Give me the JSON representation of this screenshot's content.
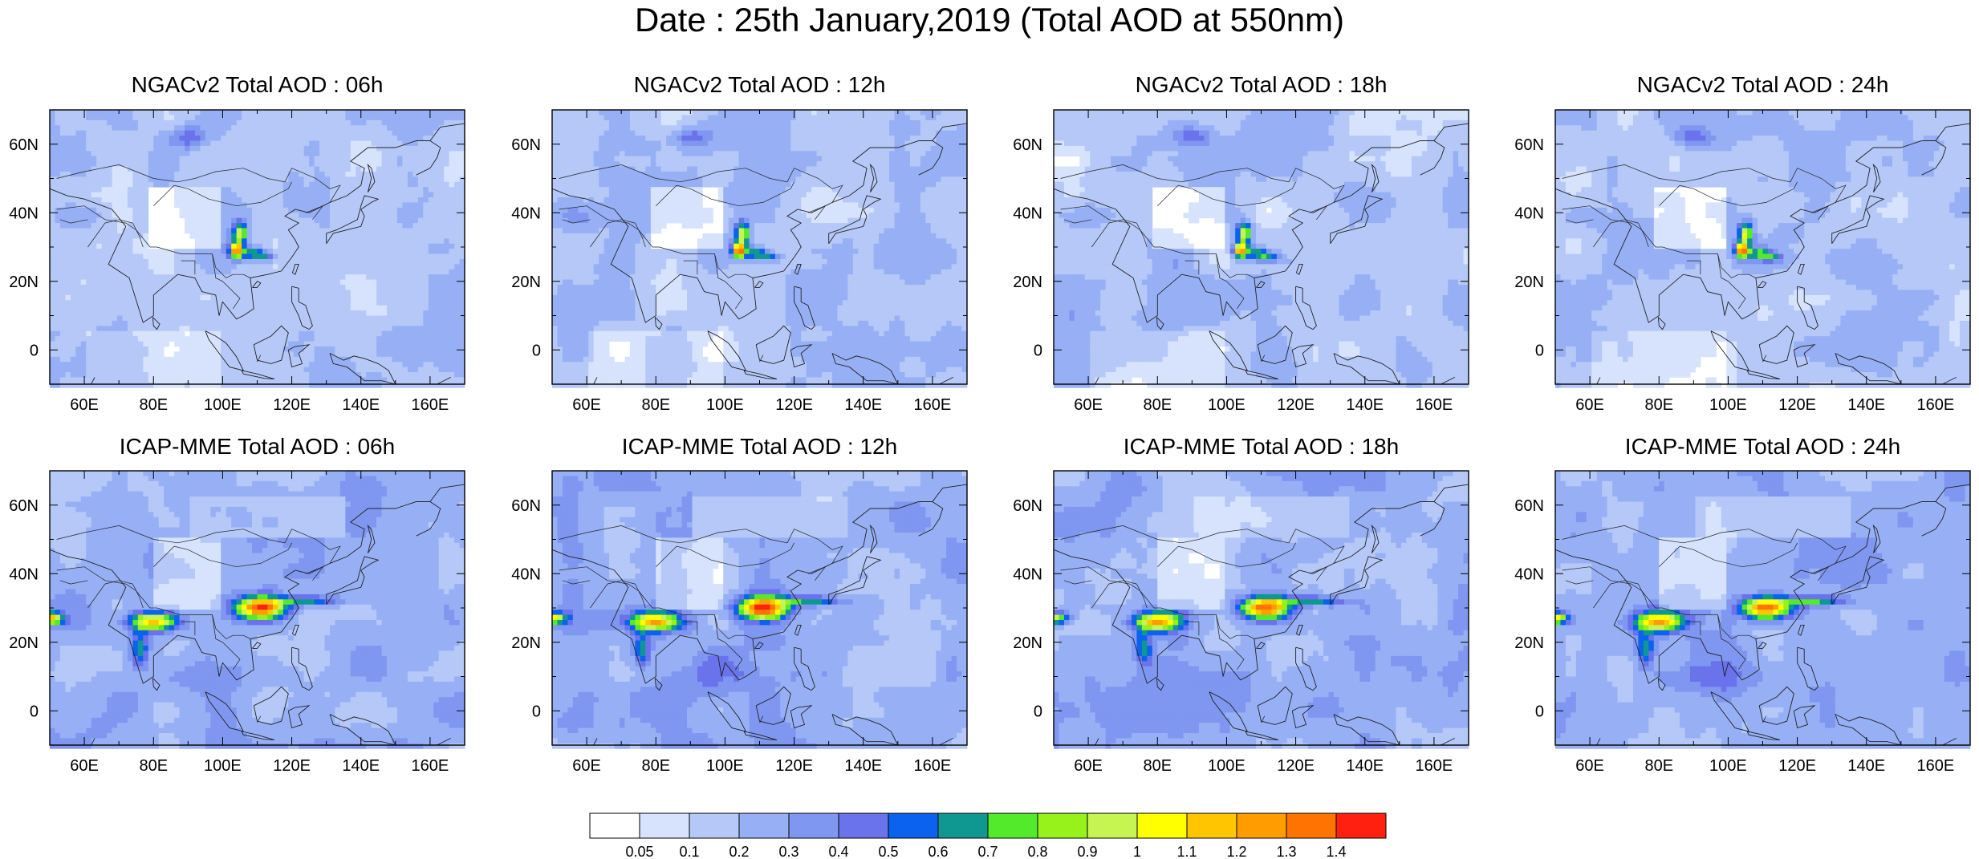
{
  "title": "Date : 25th January,2019 (Total AOD at 550nm)",
  "panels": [
    {
      "title": "NGACv2 Total AOD : 06h",
      "row": 0,
      "col": 0,
      "model": "ngac"
    },
    {
      "title": "NGACv2 Total AOD : 12h",
      "row": 0,
      "col": 1,
      "model": "ngac"
    },
    {
      "title": "NGACv2 Total AOD : 18h",
      "row": 0,
      "col": 2,
      "model": "ngac"
    },
    {
      "title": "NGACv2 Total AOD : 24h",
      "row": 0,
      "col": 3,
      "model": "ngac"
    },
    {
      "title": "ICAP-MME Total AOD : 06h",
      "row": 1,
      "col": 0,
      "model": "icap"
    },
    {
      "title": "ICAP-MME Total AOD : 12h",
      "row": 1,
      "col": 1,
      "model": "icap"
    },
    {
      "title": "ICAP-MME Total AOD : 18h",
      "row": 1,
      "col": 2,
      "model": "icap"
    },
    {
      "title": "ICAP-MME Total AOD : 24h",
      "row": 1,
      "col": 3,
      "model": "icap"
    }
  ],
  "lat_ticks": [
    "60N",
    "40N",
    "20N",
    "0"
  ],
  "lat_values": [
    60,
    40,
    20,
    0
  ],
  "lon_ticks": [
    "60E",
    "80E",
    "100E",
    "120E",
    "140E",
    "160E"
  ],
  "lon_values": [
    60,
    80,
    100,
    120,
    140,
    160
  ],
  "map_extent": {
    "lon": [
      50,
      170
    ],
    "lat": [
      -10,
      70
    ]
  },
  "colorbar": {
    "labels": [
      "0.05",
      "0.1",
      "0.2",
      "0.3",
      "0.4",
      "0.5",
      "0.6",
      "0.7",
      "0.8",
      "0.9",
      "1",
      "1.1",
      "1.2",
      "1.3",
      "1.4"
    ],
    "colors": [
      "#ffffff",
      "#d7e3fc",
      "#b5c8f7",
      "#97b0f5",
      "#7f97f0",
      "#6a72ec",
      "#0a62ee",
      "#0f9892",
      "#54ea2c",
      "#97f21c",
      "#c6f552",
      "#ffff00",
      "#ffc600",
      "#ff9d00",
      "#ff7300",
      "#ff2010"
    ]
  }
}
